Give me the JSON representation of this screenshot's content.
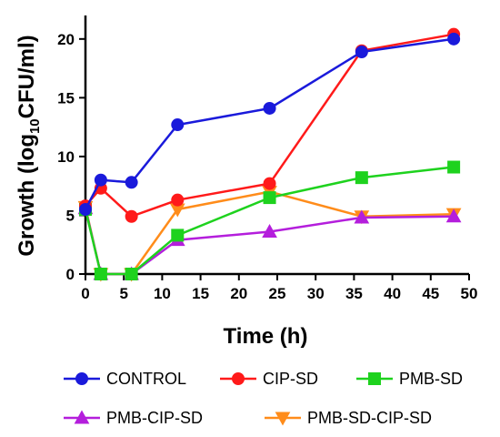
{
  "chart_data": {
    "type": "line",
    "xlabel": "Time (h)",
    "ylabel": {
      "prefix": "Growth (log",
      "sub": "10",
      "suffix": "CFU/ml)"
    },
    "xlim": [
      0,
      50
    ],
    "ylim": [
      0,
      22
    ],
    "xticks": [
      0,
      5,
      10,
      15,
      20,
      25,
      30,
      35,
      40,
      45,
      50
    ],
    "yticks": [
      0,
      5,
      10,
      15,
      20
    ],
    "grid": false,
    "legend_position": "bottom",
    "series": [
      {
        "name": "CONTROL",
        "color": "#1a1adb",
        "marker": "circle",
        "points": [
          [
            0,
            5.5
          ],
          [
            2,
            8.0
          ],
          [
            6,
            7.8
          ],
          [
            12,
            12.7
          ],
          [
            24,
            14.1
          ],
          [
            36,
            18.9
          ],
          [
            48,
            20.0
          ]
        ]
      },
      {
        "name": "CIP-SD",
        "color": "#ff1a1a",
        "marker": "circle",
        "points": [
          [
            0,
            5.8
          ],
          [
            2,
            7.3
          ],
          [
            6,
            4.9
          ],
          [
            12,
            6.3
          ],
          [
            24,
            7.7
          ],
          [
            36,
            19.0
          ],
          [
            48,
            20.4
          ]
        ]
      },
      {
        "name": "PMB-SD",
        "color": "#1ed21e",
        "marker": "square",
        "points": [
          [
            0,
            5.5
          ],
          [
            2,
            0.0
          ],
          [
            6,
            0.0
          ],
          [
            12,
            3.3
          ],
          [
            24,
            6.5
          ],
          [
            36,
            8.2
          ],
          [
            48,
            9.1
          ]
        ]
      },
      {
        "name": "PMB-CIP-SD",
        "color": "#b41edc",
        "marker": "triangle-up",
        "points": [
          [
            0,
            5.6
          ],
          [
            2,
            0.0
          ],
          [
            6,
            0.0
          ],
          [
            12,
            2.9
          ],
          [
            24,
            3.6
          ],
          [
            36,
            4.8
          ],
          [
            48,
            4.9
          ]
        ]
      },
      {
        "name": "PMB-SD-CIP-SD",
        "color": "#ff8c1a",
        "marker": "triangle-down",
        "points": [
          [
            0,
            5.7
          ],
          [
            2,
            0.0
          ],
          [
            6,
            0.0
          ],
          [
            12,
            5.5
          ],
          [
            24,
            7.0
          ],
          [
            36,
            4.9
          ],
          [
            48,
            5.1
          ]
        ]
      }
    ]
  }
}
